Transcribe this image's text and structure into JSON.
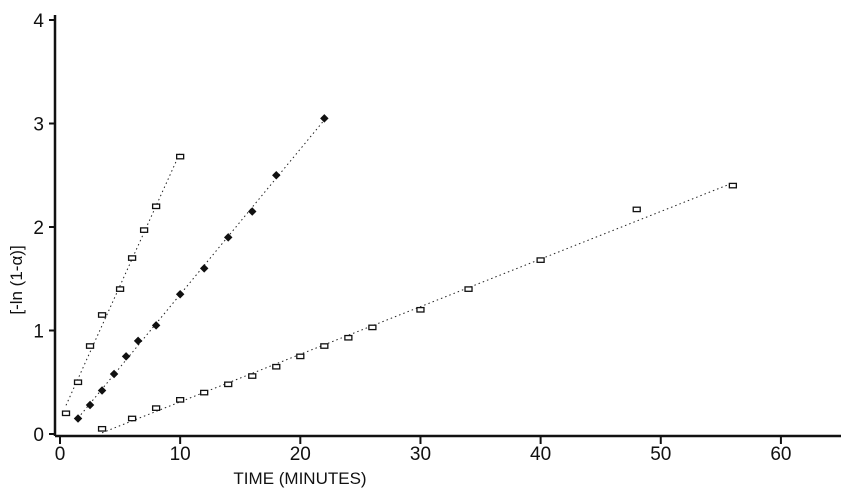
{
  "chart_data": {
    "type": "scatter",
    "title": "",
    "xlabel": "TIME (MINUTES)",
    "ylabel": "[-ln (1-α)]",
    "xlim": [
      0,
      65
    ],
    "ylim": [
      0,
      4
    ],
    "x_ticks": [
      0,
      10,
      20,
      30,
      40,
      50,
      60
    ],
    "y_ticks": [
      0,
      1,
      2,
      3,
      4
    ],
    "x_tick_labels": [
      "0",
      "10",
      "20",
      "30",
      "40",
      "50",
      "60"
    ],
    "y_tick_labels": [
      "0",
      "1",
      "2",
      "3",
      "4"
    ],
    "grid": false,
    "legend": "none",
    "series": [
      {
        "marker": "open",
        "x": [
          0.5,
          1.5,
          2.5,
          3.5,
          5,
          6,
          7,
          8,
          10
        ],
        "y": [
          0.2,
          0.5,
          0.85,
          1.15,
          1.4,
          1.7,
          1.97,
          2.2,
          2.68
        ],
        "fit": true
      },
      {
        "marker": "filled",
        "x": [
          1.5,
          2.5,
          3.5,
          4.5,
          5.5,
          6.5,
          8,
          10,
          12,
          14,
          16,
          18,
          22
        ],
        "y": [
          0.15,
          0.28,
          0.42,
          0.58,
          0.75,
          0.9,
          1.05,
          1.35,
          1.6,
          1.9,
          2.15,
          2.5,
          3.05
        ],
        "fit": true
      },
      {
        "marker": "open",
        "x": [
          3.5,
          6,
          8,
          10,
          12,
          14,
          16,
          18,
          20,
          22,
          24,
          26,
          30,
          34,
          40,
          48,
          56
        ],
        "y": [
          0.05,
          0.15,
          0.25,
          0.33,
          0.4,
          0.48,
          0.56,
          0.65,
          0.75,
          0.85,
          0.93,
          1.03,
          1.2,
          1.4,
          1.68,
          2.17,
          2.4
        ],
        "fit": true
      }
    ]
  }
}
